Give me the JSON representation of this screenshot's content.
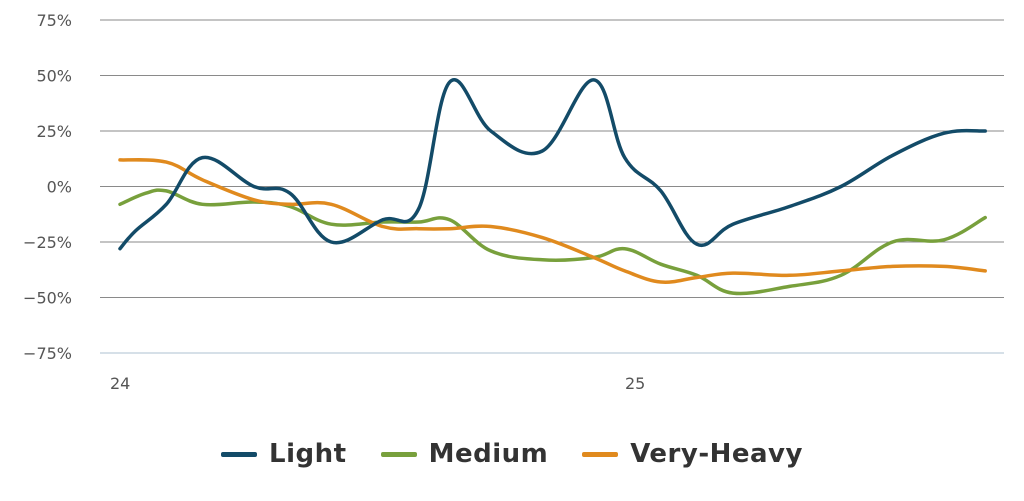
{
  "chart_data": {
    "type": "line",
    "title": "",
    "xlabel": "",
    "ylabel": "",
    "ylim": [
      -75,
      75
    ],
    "yticks": [
      75,
      50,
      25,
      0,
      -25,
      -50,
      -75
    ],
    "ytick_labels": [
      "75%",
      "50%",
      "25%",
      "0%",
      "−25%",
      "−50%",
      "−75%"
    ],
    "xlim": [
      24,
      25.7
    ],
    "xticks": [
      24,
      25
    ],
    "xtick_labels": [
      "24",
      "25"
    ],
    "grid": true,
    "legend_position": "bottom-center",
    "series": [
      {
        "name": "Light",
        "color": "#134b68",
        "x": [
          24.0,
          24.03,
          24.09,
          24.16,
          24.26,
          24.33,
          24.41,
          24.51,
          24.58,
          24.64,
          24.72,
          24.82,
          24.92,
          24.98,
          25.05,
          25.12,
          25.19,
          25.3,
          25.4,
          25.5,
          25.6,
          25.68
        ],
        "y": [
          -28,
          -20,
          -8,
          13,
          0,
          -3,
          -25,
          -15,
          -10,
          47,
          25,
          16,
          48,
          13,
          -2,
          -26,
          -17,
          -9,
          0,
          14,
          24,
          25
        ]
      },
      {
        "name": "Medium",
        "color": "#78a03c",
        "x": [
          24.0,
          24.05,
          24.09,
          24.16,
          24.26,
          24.33,
          24.41,
          24.51,
          24.58,
          24.64,
          24.72,
          24.82,
          24.92,
          24.98,
          25.05,
          25.12,
          25.19,
          25.3,
          25.4,
          25.5,
          25.6,
          25.68
        ],
        "y": [
          -8,
          -3,
          -2,
          -8,
          -7,
          -9,
          -17,
          -16,
          -16,
          -15,
          -29,
          -33,
          -32,
          -28,
          -35,
          -40,
          -48,
          -45,
          -40,
          -25,
          -24,
          -14
        ]
      },
      {
        "name": "Very-Heavy",
        "color": "#e08a1e",
        "x": [
          24.0,
          24.09,
          24.16,
          24.26,
          24.33,
          24.41,
          24.51,
          24.58,
          24.64,
          24.72,
          24.82,
          24.92,
          24.98,
          25.05,
          25.12,
          25.19,
          25.3,
          25.4,
          25.5,
          25.6,
          25.68
        ],
        "y": [
          12,
          11,
          3,
          -6,
          -8,
          -8,
          -18,
          -19,
          -19,
          -18,
          -23,
          -32,
          -38,
          -43,
          -41,
          -39,
          -40,
          -38,
          -36,
          -36,
          -38
        ]
      }
    ]
  }
}
